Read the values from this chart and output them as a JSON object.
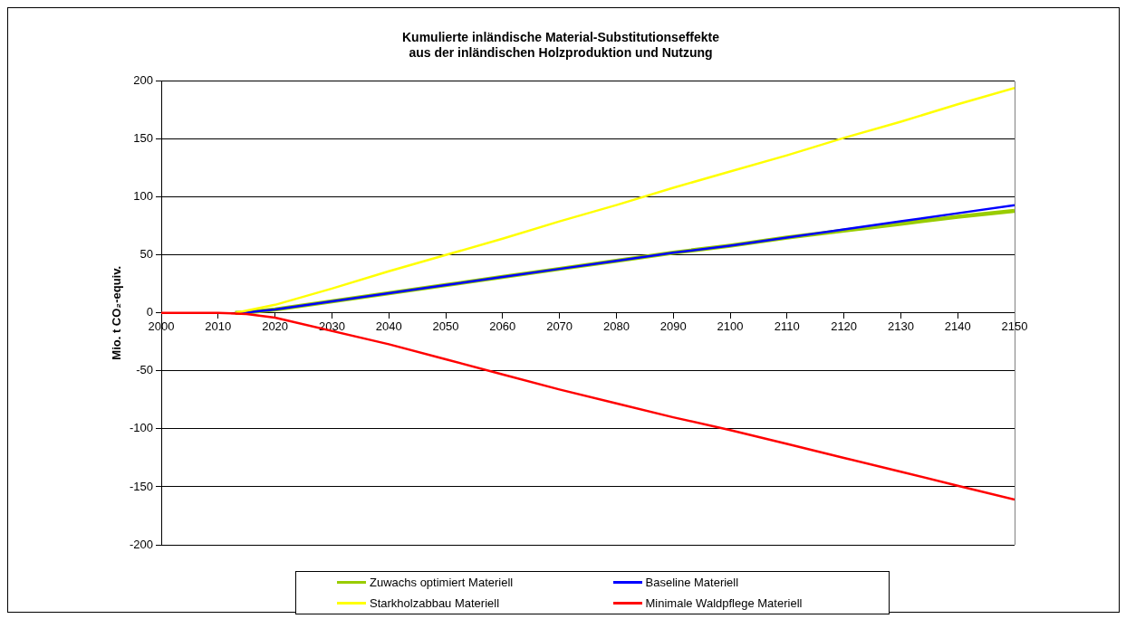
{
  "chart_data": {
    "type": "line",
    "title": "Kumulierte inländische Material-Substitutionseffekte\naus der inländischen Holzproduktion und Nutzung",
    "ylabel": "Mio. t CO₂-equiv.",
    "x": [
      2013,
      2015,
      2020,
      2030,
      2040,
      2050,
      2060,
      2070,
      2080,
      2090,
      2100,
      2110,
      2120,
      2130,
      2140,
      2150
    ],
    "series": [
      {
        "name": "Zuwachs optimiert Materiell",
        "color": "#99cc00",
        "values": [
          0,
          0.5,
          3,
          10,
          17,
          24,
          31,
          38,
          45,
          52,
          58,
          65,
          71,
          77,
          83,
          88
        ]
      },
      {
        "name": "Baseline Materiell",
        "color": "#0000ff",
        "values": [
          0,
          0.5,
          3,
          10,
          17,
          24,
          31,
          38,
          45,
          52,
          58,
          65,
          72,
          79,
          86,
          93
        ]
      },
      {
        "name": "Starkholzabbau Materiell",
        "color": "#ffff00",
        "values": [
          0,
          2,
          7,
          21,
          36,
          50,
          64,
          79,
          93,
          108,
          122,
          136,
          151,
          165,
          180,
          194
        ]
      },
      {
        "name": "Minimale Waldpflege Materiell",
        "color": "#ff0000",
        "x": [
          2000,
          2005,
          2010,
          2013,
          2015,
          2020,
          2040,
          2050,
          2060,
          2070,
          2080,
          2090,
          2100,
          2110,
          2120,
          2130,
          2140,
          2150
        ],
        "values": [
          0,
          0,
          0,
          -0.5,
          -1,
          -4,
          -27,
          -40,
          -53,
          -66,
          -78,
          -90,
          -101,
          -113,
          -125,
          -137,
          -149,
          -161
        ]
      }
    ],
    "xlim": [
      2000,
      2150
    ],
    "xticks": [
      2000,
      2010,
      2020,
      2030,
      2040,
      2050,
      2060,
      2070,
      2080,
      2090,
      2100,
      2110,
      2120,
      2130,
      2140,
      2150
    ],
    "ylim": [
      -200,
      200
    ],
    "yticks": [
      -200,
      -150,
      -100,
      -50,
      0,
      50,
      100,
      150,
      200
    ],
    "grid": "y",
    "legend": "bottom",
    "marker": "none",
    "line_style": "solid"
  }
}
